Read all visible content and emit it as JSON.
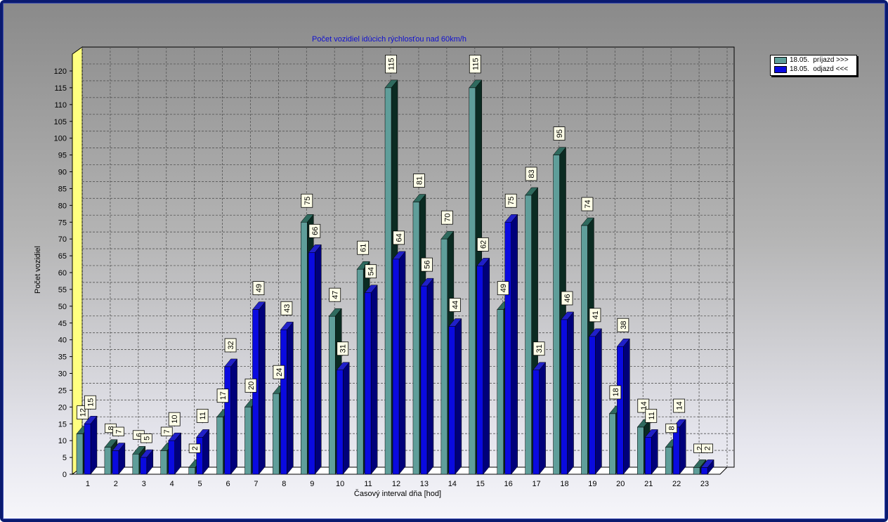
{
  "chart_data": {
    "type": "bar",
    "title": "Počet vozidiel idúcich rýchlosťou nad 60km/h",
    "xlabel": "Časový interval dňa [hod]",
    "ylabel": "Počet vozidiel",
    "ylim": [
      0,
      120
    ],
    "ytick_step": 5,
    "grid": true,
    "legend_position": "top-right",
    "categories": [
      "1",
      "2",
      "3",
      "4",
      "5",
      "6",
      "7",
      "8",
      "9",
      "10",
      "11",
      "12",
      "13",
      "14",
      "15",
      "16",
      "17",
      "18",
      "19",
      "20",
      "21",
      "22",
      "23"
    ],
    "series": [
      {
        "name": "18.05.  príjazd >>>",
        "color": "#5f9e9a",
        "values": [
          12,
          8,
          6,
          7,
          2,
          17,
          20,
          24,
          75,
          47,
          61,
          115,
          81,
          70,
          115,
          49,
          83,
          95,
          74,
          18,
          14,
          8,
          2
        ]
      },
      {
        "name": "18.05.  odjazd <<<",
        "color": "#0a0ae0",
        "values": [
          15,
          7,
          5,
          10,
          11,
          32,
          49,
          43,
          66,
          31,
          54,
          64,
          56,
          44,
          62,
          75,
          31,
          46,
          41,
          38,
          11,
          14,
          2
        ]
      }
    ]
  }
}
